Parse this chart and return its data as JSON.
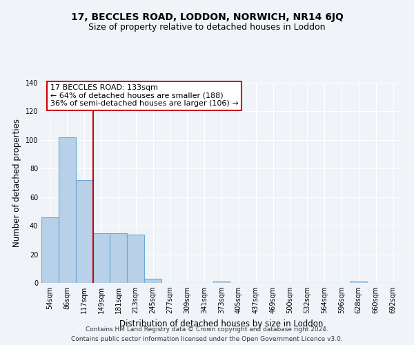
{
  "title": "17, BECCLES ROAD, LODDON, NORWICH, NR14 6JQ",
  "subtitle": "Size of property relative to detached houses in Loddon",
  "xlabel": "Distribution of detached houses by size in Loddon",
  "ylabel": "Number of detached properties",
  "categories": [
    "54sqm",
    "86sqm",
    "117sqm",
    "149sqm",
    "181sqm",
    "213sqm",
    "245sqm",
    "277sqm",
    "309sqm",
    "341sqm",
    "373sqm",
    "405sqm",
    "437sqm",
    "469sqm",
    "500sqm",
    "532sqm",
    "564sqm",
    "596sqm",
    "628sqm",
    "660sqm",
    "692sqm"
  ],
  "values": [
    46,
    102,
    72,
    35,
    35,
    34,
    3,
    0,
    0,
    0,
    1,
    0,
    0,
    0,
    0,
    0,
    0,
    0,
    1,
    0,
    0
  ],
  "bar_color": "#b8d0e8",
  "bar_edge_color": "#6aaad4",
  "red_line_x": 2.5,
  "annotation_text": "17 BECCLES ROAD: 133sqm\n← 64% of detached houses are smaller (188)\n36% of semi-detached houses are larger (106) →",
  "annotation_box_color": "white",
  "annotation_box_edge_color": "#cc0000",
  "red_line_color": "#cc0000",
  "ylim": [
    0,
    140
  ],
  "yticks": [
    0,
    20,
    40,
    60,
    80,
    100,
    120,
    140
  ],
  "footer_line1": "Contains HM Land Registry data © Crown copyright and database right 2024.",
  "footer_line2": "Contains public sector information licensed under the Open Government Licence v3.0.",
  "bg_color": "#f0f4f9",
  "title_fontsize": 10,
  "subtitle_fontsize": 9,
  "axis_label_fontsize": 8.5,
  "tick_fontsize": 7,
  "footer_fontsize": 6.5,
  "annotation_fontsize": 8
}
